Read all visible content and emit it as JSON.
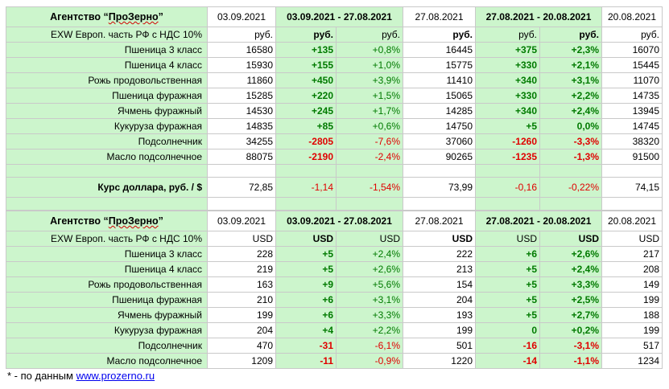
{
  "table1": {
    "title_prefix": "Агентство “",
    "title_brand": "ПроЗерно",
    "title_suffix": "”",
    "h_d1": "03.09.2021",
    "h_r1": "03.09.2021 - 27.08.2021",
    "h_d2": "27.08.2021",
    "h_r2": "27.08.2021 - 20.08.2021",
    "h_d3": "20.08.2021",
    "unit_label": "EXW Европ. часть РФ с НДС 10%",
    "unit": "руб.",
    "rows": [
      {
        "name": "Пшеница 3 класс",
        "v1": "16580",
        "c1": "+135",
        "p1": "+0,8%",
        "v2": "16445",
        "c2": "+375",
        "p2": "+2,3%",
        "v3": "16070"
      },
      {
        "name": "Пшеница 4 класс",
        "v1": "15930",
        "c1": "+155",
        "p1": "+1,0%",
        "v2": "15775",
        "c2": "+330",
        "p2": "+2,1%",
        "v3": "15445"
      },
      {
        "name": "Рожь продовольственная",
        "v1": "11860",
        "c1": "+450",
        "p1": "+3,9%",
        "v2": "11410",
        "c2": "+340",
        "p2": "+3,1%",
        "v3": "11070"
      },
      {
        "name": "Пшеница фуражная",
        "v1": "15285",
        "c1": "+220",
        "p1": "+1,5%",
        "v2": "15065",
        "c2": "+330",
        "p2": "+2,2%",
        "v3": "14735"
      },
      {
        "name": "Ячмень фуражный",
        "v1": "14530",
        "c1": "+245",
        "p1": "+1,7%",
        "v2": "14285",
        "c2": "+340",
        "p2": "+2,4%",
        "v3": "13945"
      },
      {
        "name": "Кукуруза фуражная",
        "v1": "14835",
        "c1": "+85",
        "p1": "+0,6%",
        "v2": "14750",
        "c2": "+5",
        "p2": "0,0%",
        "v3": "14745"
      },
      {
        "name": "Подсолнечник",
        "v1": "34255",
        "c1": "-2805",
        "p1": "-7,6%",
        "v2": "37060",
        "c2": "-1260",
        "p2": "-3,3%",
        "v3": "38320"
      },
      {
        "name": "Масло подсолнечное",
        "v1": "88075",
        "c1": "-2190",
        "p1": "-2,4%",
        "v2": "90265",
        "c2": "-1235",
        "p2": "-1,3%",
        "v3": "91500"
      }
    ],
    "usd": {
      "name": "Курс доллара, руб. / $",
      "v1": "72,85",
      "c1": "-1,14",
      "p1": "-1,54%",
      "v2": "73,99",
      "c2": "-0,16",
      "p2": "-0,22%",
      "v3": "74,15"
    }
  },
  "table2": {
    "title_prefix": "Агентство “",
    "title_brand": "ПроЗерно",
    "title_suffix": "”",
    "h_d1": "03.09.2021",
    "h_r1": "03.09.2021 - 27.08.2021",
    "h_d2": "27.08.2021",
    "h_r2": "27.08.2021 - 20.08.2021",
    "h_d3": "20.08.2021",
    "unit_label": "EXW Европ. часть РФ с НДС 10%",
    "unit": "USD",
    "rows": [
      {
        "name": "Пшеница 3 класс",
        "v1": "228",
        "c1": "+5",
        "p1": "+2,4%",
        "v2": "222",
        "c2": "+6",
        "p2": "+2,6%",
        "v3": "217"
      },
      {
        "name": "Пшеница 4 класс",
        "v1": "219",
        "c1": "+5",
        "p1": "+2,6%",
        "v2": "213",
        "c2": "+5",
        "p2": "+2,4%",
        "v3": "208"
      },
      {
        "name": "Рожь продовольственная",
        "v1": "163",
        "c1": "+9",
        "p1": "+5,6%",
        "v2": "154",
        "c2": "+5",
        "p2": "+3,3%",
        "v3": "149"
      },
      {
        "name": "Пшеница фуражная",
        "v1": "210",
        "c1": "+6",
        "p1": "+3,1%",
        "v2": "204",
        "c2": "+5",
        "p2": "+2,5%",
        "v3": "199"
      },
      {
        "name": "Ячмень фуражный",
        "v1": "199",
        "c1": "+6",
        "p1": "+3,3%",
        "v2": "193",
        "c2": "+5",
        "p2": "+2,7%",
        "v3": "188"
      },
      {
        "name": "Кукуруза фуражная",
        "v1": "204",
        "c1": "+4",
        "p1": "+2,2%",
        "v2": "199",
        "c2": "0",
        "p2": "+0,2%",
        "v3": "199"
      },
      {
        "name": "Подсолнечник",
        "v1": "470",
        "c1": "-31",
        "p1": "-6,1%",
        "v2": "501",
        "c2": "-16",
        "p2": "-3,1%",
        "v3": "517"
      },
      {
        "name": "Масло подсолнечное",
        "v1": "1209",
        "c1": "-11",
        "p1": "-0,9%",
        "v2": "1220",
        "c2": "-14",
        "p2": "-1,1%",
        "v3": "1234"
      }
    ]
  },
  "footer": {
    "prefix": "* - по данным ",
    "link": "www.prozerno.ru"
  },
  "colors": {
    "green_cell": "#ccf5cc",
    "positive": "#007a00",
    "negative": "#e00000"
  }
}
